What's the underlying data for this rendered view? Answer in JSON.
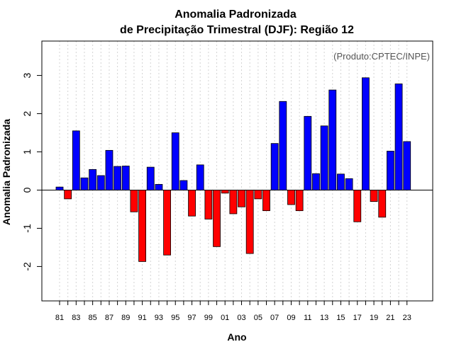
{
  "chart_data": {
    "type": "bar",
    "title_line1": "Anomalia Padronizada",
    "title_line2": "de Precipitação Trimestral (DJF): Região 12",
    "xlabel": "Ano",
    "ylabel": "Anomalia Padronizada",
    "credit": "(Produto:CPTEC/INPE)",
    "ylim": [
      -2.9,
      3.9
    ],
    "yticks": [
      -2,
      -1,
      0,
      1,
      2,
      3
    ],
    "xtick_labels": [
      "81",
      "83",
      "85",
      "87",
      "89",
      "91",
      "93",
      "95",
      "97",
      "99",
      "01",
      "03",
      "05",
      "07",
      "09",
      "11",
      "13",
      "15",
      "17",
      "19",
      "21",
      "23"
    ],
    "categories": [
      "81",
      "82",
      "83",
      "84",
      "85",
      "86",
      "87",
      "88",
      "89",
      "90",
      "91",
      "92",
      "93",
      "94",
      "95",
      "96",
      "97",
      "98",
      "99",
      "00",
      "01",
      "02",
      "03",
      "04",
      "05",
      "06",
      "07",
      "08",
      "09",
      "10",
      "11",
      "12",
      "13",
      "14",
      "15",
      "16",
      "17",
      "18",
      "19",
      "20",
      "21",
      "22",
      "23"
    ],
    "values": [
      0.08,
      -0.23,
      1.55,
      0.32,
      0.54,
      0.38,
      1.04,
      0.62,
      0.63,
      -0.57,
      -1.87,
      0.6,
      0.15,
      -1.7,
      1.5,
      0.25,
      -0.68,
      0.66,
      -0.76,
      -1.48,
      -0.08,
      -0.62,
      -0.44,
      -1.66,
      -0.23,
      -0.54,
      1.22,
      2.32,
      -0.38,
      -0.54,
      1.93,
      0.43,
      1.68,
      2.62,
      0.42,
      0.3,
      -0.83,
      2.94,
      -0.3,
      -0.71,
      1.02,
      2.78,
      1.27
    ],
    "colors": {
      "positive": "#0000ff",
      "negative": "#ff0000",
      "outline": "#000000",
      "grid": "#d3d3d3"
    }
  }
}
